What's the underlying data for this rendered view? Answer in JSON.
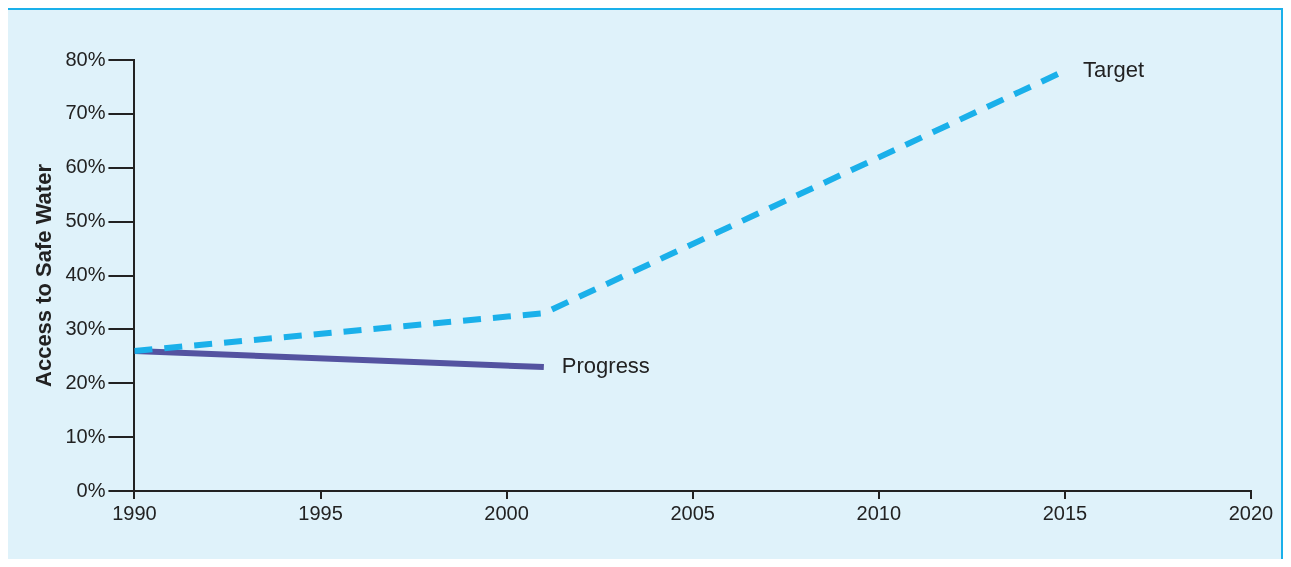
{
  "chart_data": {
    "type": "line",
    "ylabel": "Access to Safe Water",
    "xlim": [
      1990,
      2020
    ],
    "xticks": [
      1990,
      1995,
      2000,
      2005,
      2010,
      2015,
      2020
    ],
    "ylim": [
      0,
      80
    ],
    "yticks": [
      {
        "value": 0,
        "label": "0%"
      },
      {
        "value": 10,
        "label": "10%"
      },
      {
        "value": 20,
        "label": "20%"
      },
      {
        "value": 30,
        "label": "30%"
      },
      {
        "value": 40,
        "label": "40%"
      },
      {
        "value": 50,
        "label": "50%"
      },
      {
        "value": 60,
        "label": "60%"
      },
      {
        "value": 70,
        "label": "70%"
      },
      {
        "value": 80,
        "label": "80%"
      }
    ],
    "grid": false,
    "legend": false,
    "marker": "none",
    "series": [
      {
        "name": "Target",
        "color": "#1ab0ea",
        "line_style": "dashed",
        "x": [
          1990,
          2001,
          2015
        ],
        "values": [
          26,
          33,
          78
        ]
      },
      {
        "name": "Progress",
        "color": "#5453a0",
        "line_style": "solid",
        "x": [
          1990,
          2001
        ],
        "values": [
          26,
          23
        ]
      }
    ]
  }
}
